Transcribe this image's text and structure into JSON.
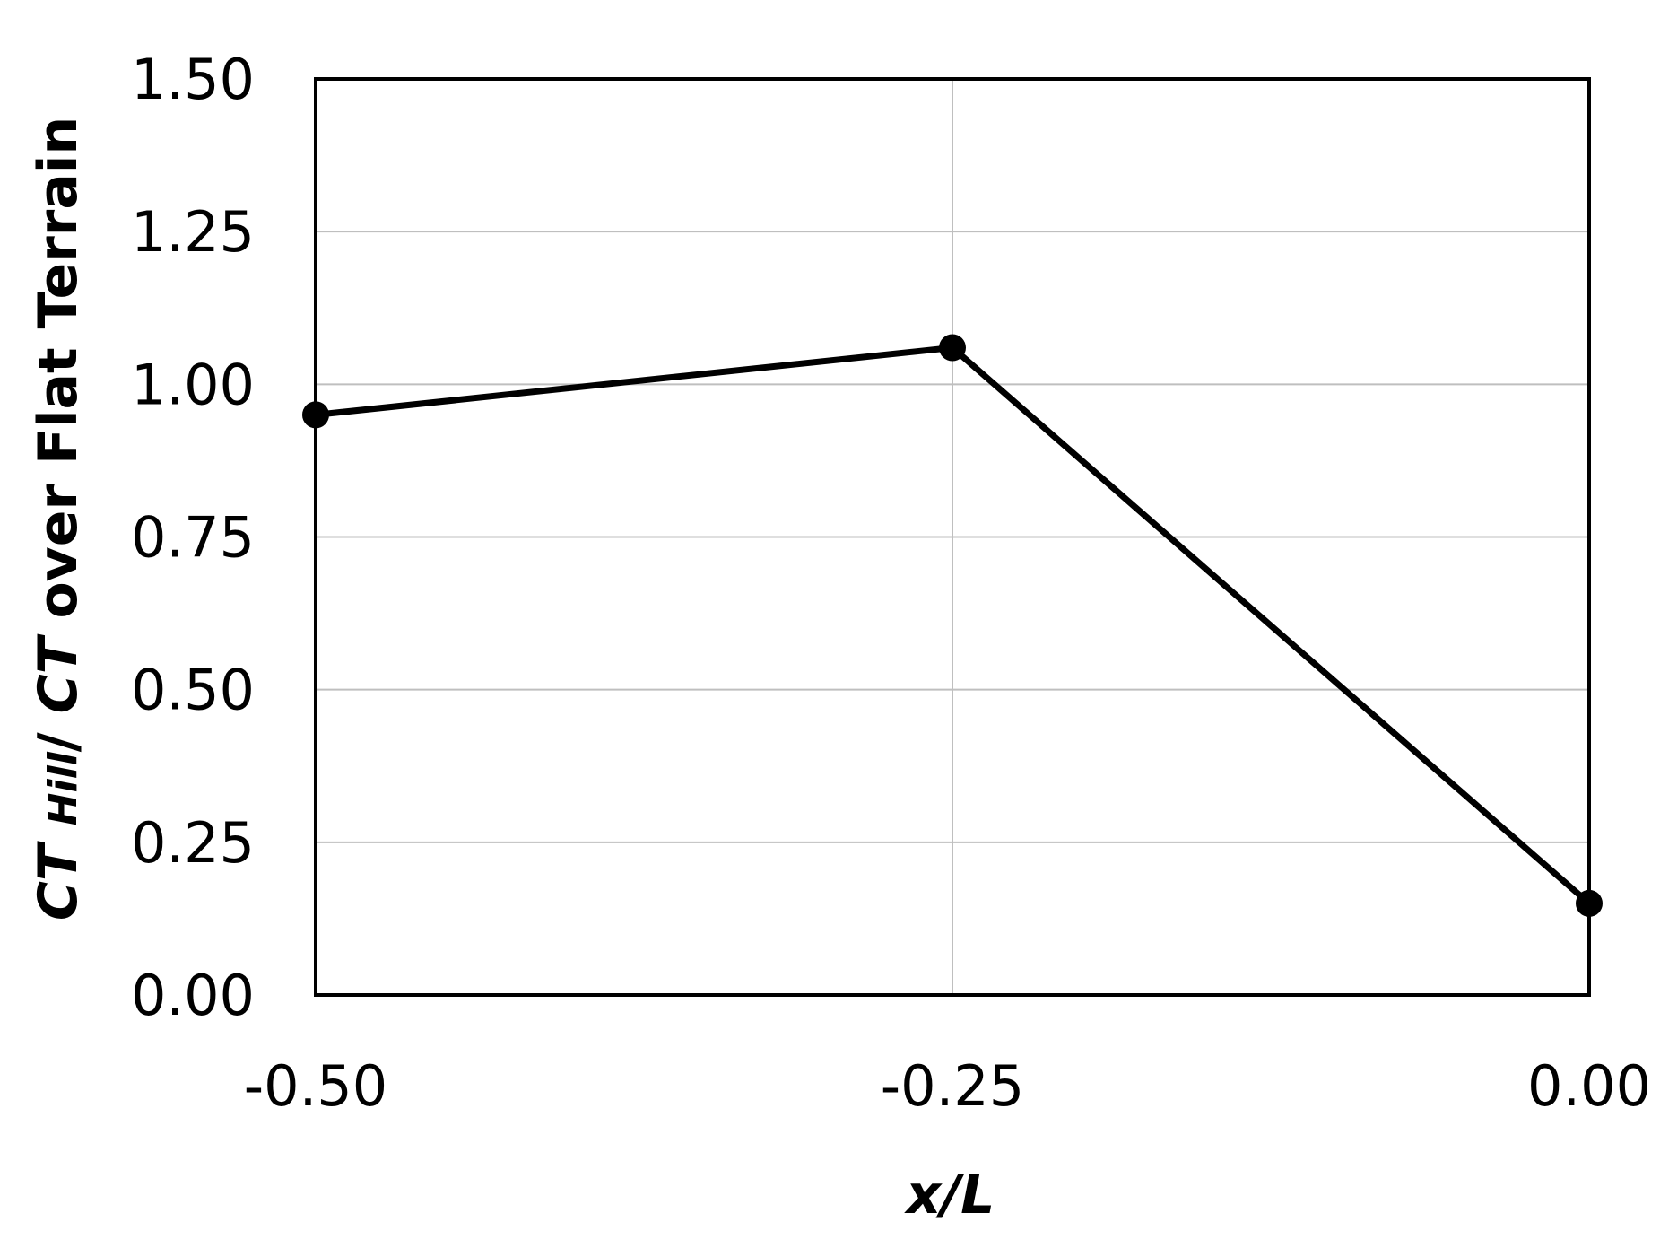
{
  "chart_data": {
    "type": "line",
    "x": [
      -0.5,
      -0.25,
      0.0
    ],
    "series": [
      {
        "values": [
          0.95,
          1.06,
          0.15
        ]
      }
    ],
    "xlabel": "x/L",
    "ylabel": {
      "ct_symbol": "CT",
      "hill_label": "Hill",
      "separator": "/ ",
      "rest": " over Flat Terrain"
    },
    "xlim": [
      -0.5,
      0.0
    ],
    "ylim": [
      0.0,
      1.5
    ],
    "x_ticks": [
      "-0.50",
      "-0.25",
      "0.00"
    ],
    "y_ticks": [
      "0.00",
      "0.25",
      "0.50",
      "0.75",
      "1.00",
      "1.25",
      "1.50"
    ],
    "grid": true,
    "line_color": "#000000",
    "grid_color": "#bfbfbf",
    "marker": "circle"
  }
}
